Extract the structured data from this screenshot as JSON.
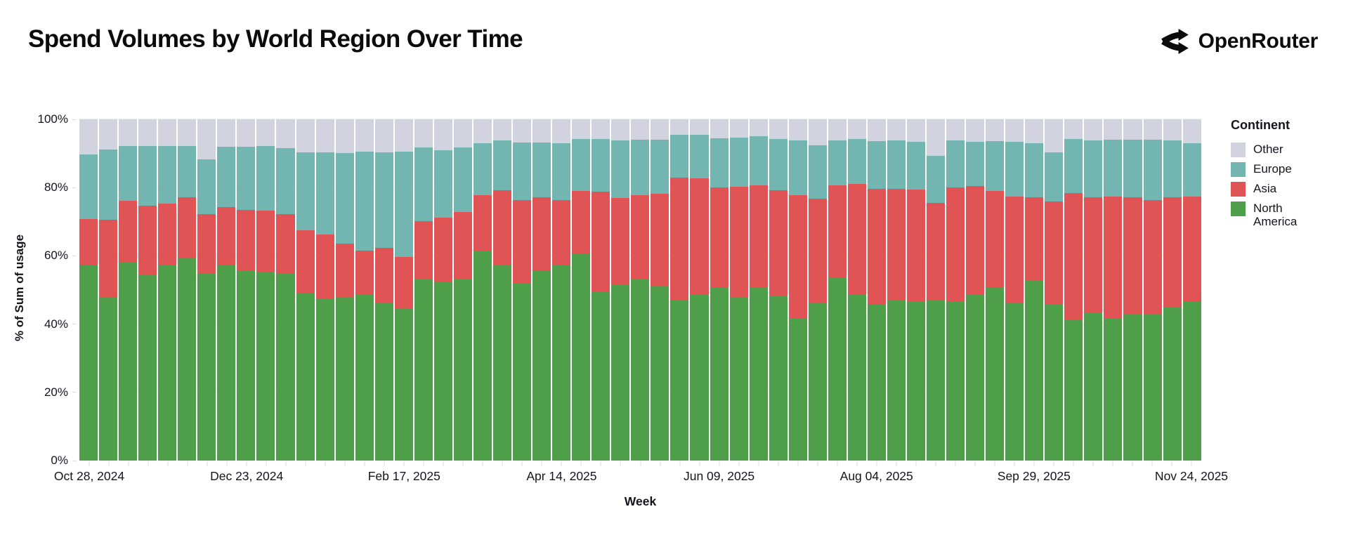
{
  "header": {
    "title": "Spend Volumes by World Region Over Time",
    "brand": "OpenRouter"
  },
  "chart_data": {
    "type": "bar",
    "subtype": "stacked-percent",
    "title": "Spend Volumes by World Region Over Time",
    "xlabel": "Week",
    "ylabel": "% of Sum of usage",
    "ylim": [
      0,
      100
    ],
    "y_ticks": [
      "0%",
      "20%",
      "40%",
      "60%",
      "80%",
      "100%"
    ],
    "grid": true,
    "legend_title": "Continent",
    "legend_position": "right",
    "legend_order": [
      "Other",
      "Europe",
      "Asia",
      "North America"
    ],
    "x": [
      "Oct 28, 2024",
      "Nov 04, 2024",
      "Nov 11, 2024",
      "Nov 18, 2024",
      "Nov 25, 2024",
      "Dec 02, 2024",
      "Dec 09, 2024",
      "Dec 16, 2024",
      "Dec 23, 2024",
      "Dec 30, 2024",
      "Jan 06, 2025",
      "Jan 13, 2025",
      "Jan 20, 2025",
      "Jan 27, 2025",
      "Feb 03, 2025",
      "Feb 10, 2025",
      "Feb 17, 2025",
      "Feb 24, 2025",
      "Mar 03, 2025",
      "Mar 10, 2025",
      "Mar 17, 2025",
      "Mar 24, 2025",
      "Mar 31, 2025",
      "Apr 07, 2025",
      "Apr 14, 2025",
      "Apr 21, 2025",
      "Apr 28, 2025",
      "May 05, 2025",
      "May 12, 2025",
      "May 19, 2025",
      "May 26, 2025",
      "Jun 02, 2025",
      "Jun 09, 2025",
      "Jun 16, 2025",
      "Jun 23, 2025",
      "Jun 30, 2025",
      "Jul 07, 2025",
      "Jul 14, 2025",
      "Jul 21, 2025",
      "Jul 28, 2025",
      "Aug 04, 2025",
      "Aug 11, 2025",
      "Aug 18, 2025",
      "Aug 25, 2025",
      "Sep 01, 2025",
      "Sep 08, 2025",
      "Sep 15, 2025",
      "Sep 22, 2025",
      "Sep 29, 2025",
      "Oct 06, 2025",
      "Oct 13, 2025",
      "Oct 20, 2025",
      "Oct 27, 2025",
      "Nov 03, 2025",
      "Nov 10, 2025",
      "Nov 17, 2025",
      "Nov 24, 2025"
    ],
    "x_tick_label_indices": [
      0,
      8,
      16,
      24,
      32,
      40,
      48,
      56
    ],
    "x_tick_labels": [
      "Oct 28, 2024",
      "Dec 23, 2024",
      "Feb 17, 2025",
      "Apr 14, 2025",
      "Jun 09, 2025",
      "Aug 04, 2025",
      "Sep 29, 2025",
      "Nov 24, 2025"
    ],
    "series": [
      {
        "name": "North America",
        "color": "#4f9e4a",
        "values": [
          57.5,
          47.9,
          58.2,
          54.6,
          57.1,
          59.4,
          55.0,
          57.5,
          55.5,
          55.4,
          55.0,
          49.1,
          47.4,
          47.9,
          48.6,
          46.3,
          44.6,
          53.3,
          52.5,
          53.2,
          61.3,
          57.3,
          51.9,
          55.7,
          57.5,
          60.6,
          49.5,
          51.6,
          53.2,
          51.2,
          47.0,
          48.8,
          50.9,
          47.7,
          50.7,
          48.4,
          41.6,
          46.0,
          53.7,
          48.6,
          45.8,
          47.0,
          46.7,
          47.0,
          46.7,
          48.6,
          50.9,
          46.2,
          52.8,
          45.6,
          41.2,
          43.2,
          41.5,
          42.7,
          43.0,
          45.1,
          46.5
        ]
      },
      {
        "name": "Asia",
        "color": "#e05455",
        "values": [
          13.2,
          22.6,
          17.9,
          20.1,
          18.3,
          17.7,
          17.3,
          16.8,
          18.0,
          17.8,
          17.3,
          18.3,
          18.8,
          15.6,
          13.0,
          16.0,
          15.1,
          16.8,
          18.6,
          19.7,
          16.5,
          21.9,
          24.5,
          21.4,
          18.9,
          18.4,
          29.4,
          25.4,
          24.6,
          27.0,
          35.9,
          34.0,
          29.2,
          32.5,
          29.9,
          30.8,
          36.1,
          30.8,
          26.9,
          32.4,
          33.9,
          32.7,
          32.7,
          28.6,
          33.4,
          31.8,
          28.1,
          31.1,
          24.3,
          30.3,
          37.1,
          33.9,
          35.9,
          34.4,
          33.4,
          32.0,
          30.8
        ]
      },
      {
        "name": "Europe",
        "color": "#73b5b0",
        "values": [
          19.1,
          20.7,
          16.0,
          17.5,
          16.8,
          15.0,
          16.0,
          17.7,
          18.5,
          18.9,
          19.3,
          22.9,
          24.2,
          26.7,
          29.0,
          28.0,
          30.9,
          21.6,
          19.8,
          18.9,
          15.2,
          14.6,
          16.9,
          16.2,
          16.6,
          15.2,
          15.3,
          16.8,
          16.2,
          15.8,
          12.6,
          12.7,
          14.3,
          14.5,
          14.5,
          15.0,
          16.1,
          15.5,
          13.2,
          13.2,
          14.0,
          14.1,
          14.1,
          13.7,
          13.8,
          13.1,
          14.7,
          16.2,
          16.0,
          14.4,
          15.9,
          16.7,
          16.6,
          16.9,
          17.6,
          16.7,
          15.7
        ]
      },
      {
        "name": "Other",
        "color": "#d1d3df",
        "values": [
          10.2,
          8.8,
          7.9,
          7.8,
          7.8,
          7.9,
          11.7,
          8.0,
          8.0,
          7.9,
          8.4,
          9.7,
          9.6,
          9.8,
          9.4,
          9.7,
          9.4,
          8.3,
          9.1,
          8.2,
          7.0,
          6.2,
          6.7,
          6.7,
          7.0,
          5.8,
          5.8,
          6.2,
          6.0,
          6.0,
          4.5,
          4.5,
          5.6,
          5.3,
          4.9,
          5.8,
          6.2,
          7.7,
          6.2,
          5.8,
          6.3,
          6.2,
          6.5,
          10.7,
          6.1,
          6.5,
          6.3,
          6.5,
          6.9,
          9.7,
          5.8,
          6.2,
          6.0,
          6.0,
          6.0,
          6.2,
          7.0
        ]
      }
    ]
  },
  "colors": {
    "background": "#ffffff",
    "title_text": "#0b0b0c",
    "axis_text": "#15151e",
    "gridline": "#ededf2",
    "tick": "#d9d9e0"
  }
}
